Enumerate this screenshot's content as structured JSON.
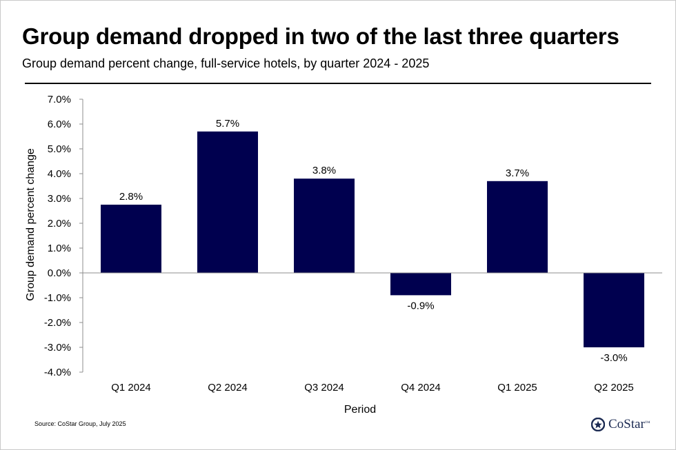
{
  "header": {
    "title": "Group demand dropped in two of the last three quarters",
    "subtitle": "Group demand percent change, full-service hotels, by quarter 2024 - 2025"
  },
  "footer": {
    "source": "Source: CoStar Group, July 2025",
    "brand": "CoStar",
    "brand_mark": "™"
  },
  "colors": {
    "bar": "#00004f",
    "axis": "#8c8c8c",
    "brand": "#1b2a52"
  },
  "chart_data": {
    "type": "bar",
    "categories": [
      "Q1 2024",
      "Q2 2024",
      "Q3 2024",
      "Q4 2024",
      "Q1 2025",
      "Q2 2025"
    ],
    "values": [
      2.75,
      5.7,
      3.8,
      -0.9,
      3.7,
      -3.0
    ],
    "data_labels": [
      "2.8%",
      "5.7%",
      "3.8%",
      "-0.9%",
      "3.7%",
      "-3.0%"
    ],
    "xlabel": "Period",
    "ylabel": "Group demand percent change",
    "ylim": [
      -4,
      7
    ],
    "ytick_values": [
      7,
      6,
      5,
      4,
      3,
      2,
      1,
      0,
      -1,
      -2,
      -3,
      -4
    ],
    "yticks": [
      "7.0%",
      "6.0%",
      "5.0%",
      "4.0%",
      "3.0%",
      "2.0%",
      "1.0%",
      "0.0%",
      "-1.0%",
      "-2.0%",
      "-3.0%",
      "-4.0%"
    ],
    "grid": false,
    "legend": "none"
  }
}
